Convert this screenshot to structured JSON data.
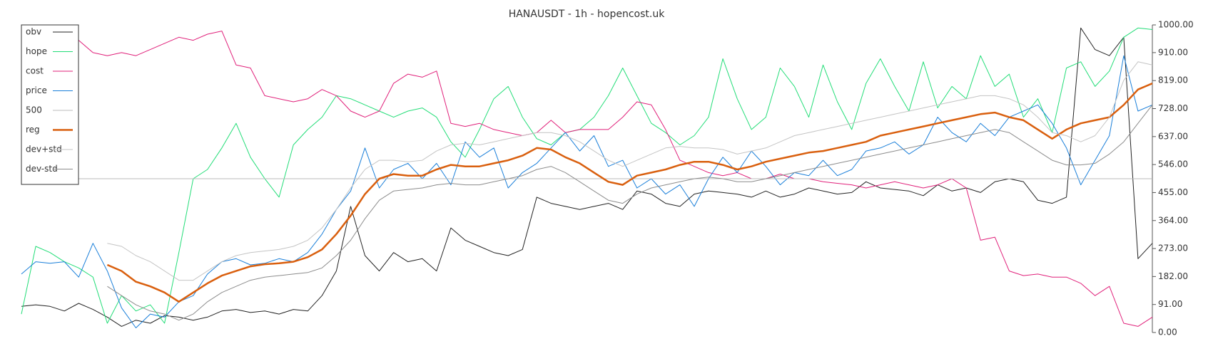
{
  "chart_data": {
    "type": "line",
    "title": "HANAUSDT - 1h - hopencost.uk",
    "ylim": [
      0,
      1000
    ],
    "y_axis_side": "right",
    "legend": "upper left",
    "yticks": [
      {
        "value": 0,
        "label": "0.00"
      },
      {
        "value": 91,
        "label": "91.00"
      },
      {
        "value": 182,
        "label": "182.00"
      },
      {
        "value": 273,
        "label": "273.00"
      },
      {
        "value": 364,
        "label": "364.00"
      },
      {
        "value": 455,
        "label": "455.00"
      },
      {
        "value": 546,
        "label": "546.00"
      },
      {
        "value": 637,
        "label": "637.00"
      },
      {
        "value": 728,
        "label": "728.00"
      },
      {
        "value": 819,
        "label": "819.00"
      },
      {
        "value": 910,
        "label": "910.00"
      },
      {
        "value": 1000,
        "label": "1000.00"
      }
    ],
    "series": [
      {
        "name": "obv",
        "color": "#222222",
        "width": 1,
        "values": [
          85,
          90,
          85,
          70,
          95,
          75,
          50,
          20,
          40,
          30,
          55,
          50,
          40,
          50,
          70,
          75,
          65,
          70,
          60,
          75,
          70,
          120,
          200,
          410,
          250,
          200,
          260,
          230,
          240,
          200,
          340,
          300,
          280,
          260,
          250,
          270,
          440,
          420,
          410,
          400,
          410,
          420,
          400,
          460,
          450,
          420,
          410,
          450,
          460,
          455,
          450,
          440,
          460,
          440,
          450,
          470,
          460,
          450,
          455,
          490,
          470,
          465,
          460,
          445,
          480,
          460,
          470,
          455,
          490,
          500,
          490,
          430,
          420,
          440,
          990,
          920,
          900,
          960,
          240,
          290
        ]
      },
      {
        "name": "hope",
        "color": "#22dd77",
        "width": 1,
        "values": [
          60,
          280,
          260,
          230,
          210,
          180,
          30,
          120,
          70,
          90,
          30,
          260,
          500,
          530,
          600,
          680,
          570,
          500,
          440,
          610,
          660,
          700,
          770,
          760,
          740,
          720,
          700,
          720,
          730,
          700,
          620,
          570,
          660,
          760,
          800,
          700,
          630,
          610,
          650,
          660,
          700,
          770,
          860,
          770,
          680,
          650,
          610,
          640,
          700,
          890,
          760,
          660,
          700,
          860,
          800,
          700,
          870,
          750,
          660,
          810,
          890,
          800,
          720,
          880,
          730,
          800,
          760,
          900,
          800,
          840,
          700,
          760,
          650,
          860,
          880,
          800,
          850,
          960,
          990,
          985
        ]
      },
      {
        "name": "cost",
        "color": "#e0207a",
        "width": 1,
        "values": [
          null,
          null,
          null,
          null,
          950,
          910,
          900,
          910,
          900,
          920,
          940,
          960,
          950,
          970,
          980,
          870,
          860,
          770,
          760,
          750,
          760,
          790,
          770,
          720,
          700,
          720,
          810,
          840,
          830,
          850,
          680,
          670,
          680,
          660,
          650,
          640,
          650,
          690,
          650,
          660,
          660,
          660,
          700,
          750,
          740,
          660,
          560,
          540,
          520,
          510,
          520,
          500,
          500,
          515,
          500,
          500,
          490,
          485,
          480,
          470,
          480,
          490,
          480,
          470,
          480,
          500,
          470,
          300,
          310,
          200,
          185,
          190,
          180,
          180,
          160,
          120,
          150,
          30,
          20,
          50
        ]
      },
      {
        "name": "price",
        "color": "#1a7fd9",
        "width": 1,
        "values": [
          190,
          230,
          225,
          230,
          180,
          290,
          200,
          80,
          15,
          60,
          50,
          100,
          120,
          190,
          230,
          240,
          220,
          225,
          240,
          230,
          260,
          320,
          400,
          460,
          600,
          470,
          530,
          550,
          500,
          550,
          480,
          620,
          570,
          600,
          470,
          520,
          550,
          600,
          650,
          590,
          640,
          540,
          560,
          470,
          500,
          450,
          480,
          410,
          500,
          570,
          520,
          590,
          540,
          480,
          520,
          510,
          560,
          510,
          530,
          590,
          600,
          620,
          580,
          610,
          700,
          650,
          620,
          680,
          640,
          700,
          720,
          740,
          680,
          600,
          480,
          560,
          640,
          900,
          720,
          740
        ]
      },
      {
        "name": "500",
        "color": "#bbbbbb",
        "width": 1,
        "value": 500
      },
      {
        "name": "reg",
        "color": "#d95f0e",
        "width": 2.5,
        "values": [
          null,
          null,
          null,
          null,
          null,
          null,
          220,
          200,
          165,
          150,
          130,
          100,
          130,
          160,
          185,
          200,
          215,
          222,
          225,
          230,
          245,
          270,
          320,
          380,
          450,
          500,
          515,
          510,
          510,
          530,
          545,
          540,
          540,
          550,
          560,
          575,
          600,
          595,
          570,
          550,
          520,
          490,
          480,
          510,
          520,
          530,
          545,
          555,
          555,
          545,
          530,
          540,
          555,
          565,
          575,
          585,
          590,
          600,
          610,
          620,
          640,
          650,
          660,
          670,
          680,
          690,
          700,
          710,
          715,
          700,
          690,
          660,
          630,
          660,
          680,
          690,
          700,
          740,
          790,
          810
        ]
      },
      {
        "name": "dev+std",
        "color": "#c4c4c4",
        "width": 1,
        "values": [
          null,
          null,
          null,
          null,
          null,
          null,
          290,
          280,
          250,
          230,
          200,
          170,
          170,
          200,
          230,
          250,
          260,
          265,
          270,
          280,
          300,
          340,
          400,
          470,
          530,
          560,
          560,
          555,
          560,
          590,
          610,
          615,
          610,
          620,
          630,
          640,
          650,
          650,
          640,
          620,
          590,
          560,
          540,
          560,
          580,
          600,
          605,
          600,
          600,
          595,
          580,
          590,
          600,
          620,
          640,
          650,
          660,
          670,
          680,
          690,
          700,
          710,
          720,
          730,
          740,
          750,
          760,
          770,
          770,
          760,
          740,
          700,
          650,
          640,
          620,
          640,
          700,
          820,
          880,
          870
        ]
      },
      {
        "name": "dev-std",
        "color": "#8c8c8c",
        "width": 1,
        "values": [
          null,
          null,
          null,
          null,
          null,
          null,
          150,
          120,
          90,
          70,
          60,
          40,
          60,
          100,
          130,
          150,
          170,
          180,
          185,
          190,
          195,
          210,
          250,
          300,
          370,
          430,
          460,
          465,
          470,
          480,
          485,
          480,
          480,
          490,
          500,
          510,
          530,
          540,
          520,
          490,
          460,
          430,
          420,
          450,
          470,
          480,
          490,
          500,
          505,
          500,
          490,
          490,
          500,
          510,
          520,
          530,
          540,
          550,
          560,
          570,
          580,
          590,
          600,
          610,
          620,
          630,
          640,
          650,
          660,
          650,
          620,
          590,
          560,
          545,
          545,
          550,
          580,
          620,
          680,
          740
        ]
      }
    ]
  }
}
